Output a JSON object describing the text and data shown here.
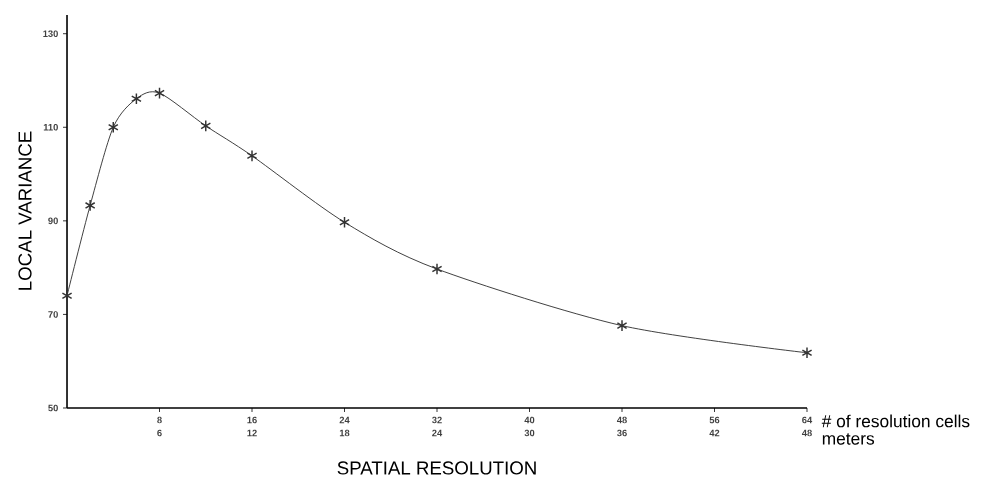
{
  "chart_data": {
    "type": "line",
    "xlabel": "SPATIAL RESOLUTION",
    "ylabel": "LOCAL VARIANCE",
    "x2label": "meters",
    "annotations": [
      "# of resolution cells"
    ],
    "x": [
      0,
      2,
      4,
      6,
      8,
      12,
      16,
      24,
      32,
      48,
      64
    ],
    "series": [
      {
        "color": "#333333",
        "values": [
          74,
          93.3,
          110,
          116.1,
          117.3,
          110.3,
          103.9,
          89.7,
          79.7,
          67.6,
          61.8
        ]
      }
    ],
    "marker": "cross",
    "xlim": [
      0,
      64
    ],
    "xticks": [
      8,
      16,
      24,
      32,
      40,
      48,
      56,
      64
    ],
    "x2lim": [
      0,
      48
    ],
    "x2ticks": [
      6,
      12,
      18,
      24,
      30,
      36,
      42,
      48
    ],
    "ylim": [
      50,
      134
    ],
    "yticks": [
      50,
      70,
      90,
      110,
      130
    ]
  }
}
